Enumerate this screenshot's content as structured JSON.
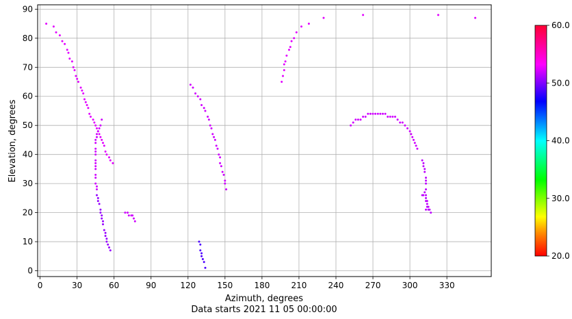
{
  "chart_data": {
    "type": "scatter",
    "title": "",
    "xlabel": "Azimuth, degrees",
    "ylabel": "Elevation, degrees",
    "caption": "Data starts 2021 11 05 00:00:00",
    "xlim": [
      -2,
      366
    ],
    "ylim": [
      -2,
      91.5
    ],
    "xticks": [
      0,
      30,
      60,
      90,
      120,
      150,
      180,
      210,
      240,
      270,
      300,
      330
    ],
    "yticks": [
      0,
      10,
      20,
      30,
      40,
      50,
      60,
      70,
      80,
      90
    ],
    "grid": true,
    "colorbar": {
      "min": 20,
      "max": 60,
      "ticks": [
        "20.0",
        "30.0",
        "40.0",
        "50.0",
        "60.0"
      ],
      "tick_values": [
        20,
        30,
        40,
        50,
        60
      ],
      "colormap": "hsv"
    },
    "series": [
      {
        "value": 53.5,
        "points": [
          [
            5,
            85
          ],
          [
            11,
            84
          ],
          [
            13,
            82
          ],
          [
            16,
            81
          ],
          [
            18,
            79
          ],
          [
            20,
            78
          ],
          [
            22,
            76
          ],
          [
            23,
            75
          ],
          [
            24,
            73
          ],
          [
            26,
            72
          ],
          [
            27,
            70
          ],
          [
            28,
            69
          ],
          [
            29,
            67
          ],
          [
            30,
            66
          ],
          [
            31,
            65
          ],
          [
            33,
            63
          ],
          [
            34,
            62
          ],
          [
            35,
            61
          ],
          [
            36,
            59
          ],
          [
            37,
            58
          ],
          [
            38,
            57
          ],
          [
            39,
            56
          ],
          [
            40,
            54
          ],
          [
            41,
            53
          ],
          [
            43,
            52
          ],
          [
            44,
            51
          ],
          [
            45,
            50
          ],
          [
            46,
            49
          ],
          [
            47,
            48
          ],
          [
            48,
            47
          ],
          [
            49,
            46
          ],
          [
            50,
            45
          ],
          [
            51,
            44
          ],
          [
            52,
            43
          ],
          [
            53,
            41
          ],
          [
            54,
            40
          ],
          [
            56,
            39
          ],
          [
            57,
            38
          ],
          [
            59,
            37
          ]
        ]
      },
      {
        "value": 53.0,
        "points": [
          [
            50,
            52
          ],
          [
            49,
            50
          ],
          [
            48,
            49
          ],
          [
            47,
            48
          ],
          [
            46,
            47
          ],
          [
            46,
            46
          ],
          [
            45,
            45
          ],
          [
            45,
            44
          ],
          [
            45,
            42
          ],
          [
            45,
            41
          ],
          [
            45,
            40
          ],
          [
            45,
            38
          ],
          [
            45,
            37
          ],
          [
            45,
            36
          ],
          [
            45,
            35
          ],
          [
            45,
            33
          ],
          [
            45,
            32
          ],
          [
            45,
            30
          ],
          [
            46,
            29
          ],
          [
            46,
            28
          ]
        ]
      },
      {
        "value": 51.5,
        "points": [
          [
            46,
            26
          ],
          [
            47,
            25
          ],
          [
            47,
            24
          ],
          [
            48,
            23
          ],
          [
            49,
            21
          ],
          [
            49,
            20
          ],
          [
            50,
            19
          ],
          [
            50,
            18
          ],
          [
            51,
            17
          ],
          [
            51,
            16
          ],
          [
            52,
            14
          ],
          [
            53,
            13
          ],
          [
            53,
            12
          ],
          [
            54,
            11
          ],
          [
            54,
            10
          ],
          [
            55,
            9
          ],
          [
            56,
            8
          ],
          [
            57,
            7
          ]
        ]
      },
      {
        "value": 53.0,
        "points": [
          [
            69,
            20
          ],
          [
            71,
            20
          ],
          [
            72,
            19
          ],
          [
            74,
            19
          ],
          [
            75,
            19
          ],
          [
            76,
            18
          ],
          [
            77,
            17
          ]
        ]
      },
      {
        "value": 53.0,
        "points": [
          [
            122,
            64
          ],
          [
            124,
            63
          ],
          [
            126,
            61
          ],
          [
            128,
            60
          ],
          [
            130,
            59
          ],
          [
            131,
            57
          ],
          [
            133,
            56
          ],
          [
            134,
            55
          ],
          [
            136,
            53
          ],
          [
            137,
            52
          ],
          [
            138,
            50
          ],
          [
            139,
            49
          ],
          [
            140,
            47
          ],
          [
            141,
            46
          ],
          [
            142,
            45
          ],
          [
            143,
            43
          ],
          [
            144,
            42
          ],
          [
            145,
            40
          ],
          [
            146,
            39
          ],
          [
            146,
            37
          ],
          [
            147,
            36
          ],
          [
            148,
            34
          ],
          [
            149,
            33
          ],
          [
            150,
            31
          ],
          [
            150,
            30
          ],
          [
            151,
            28
          ]
        ]
      },
      {
        "value": 49.5,
        "points": [
          [
            129,
            10
          ],
          [
            130,
            9
          ],
          [
            130,
            7
          ],
          [
            131,
            6
          ],
          [
            131,
            5
          ],
          [
            132,
            4
          ],
          [
            133,
            3
          ],
          [
            134,
            1
          ]
        ]
      },
      {
        "value": 53.5,
        "points": [
          [
            196,
            65
          ],
          [
            197,
            67
          ],
          [
            198,
            69
          ],
          [
            198,
            71
          ],
          [
            199,
            72
          ],
          [
            200,
            74
          ],
          [
            202,
            76
          ],
          [
            203,
            77
          ],
          [
            204,
            79
          ],
          [
            206,
            80
          ],
          [
            208,
            82
          ],
          [
            212,
            84
          ],
          [
            218,
            85
          ],
          [
            230,
            87
          ],
          [
            262,
            88
          ],
          [
            323,
            88
          ],
          [
            353,
            87
          ]
        ]
      },
      {
        "value": 53.0,
        "points": [
          [
            252,
            50
          ],
          [
            254,
            51
          ],
          [
            256,
            52
          ],
          [
            258,
            52
          ],
          [
            260,
            52
          ],
          [
            262,
            53
          ],
          [
            264,
            53
          ],
          [
            266,
            54
          ],
          [
            268,
            54
          ],
          [
            270,
            54
          ],
          [
            272,
            54
          ],
          [
            274,
            54
          ],
          [
            276,
            54
          ],
          [
            278,
            54
          ],
          [
            280,
            54
          ],
          [
            282,
            53
          ],
          [
            284,
            53
          ],
          [
            286,
            53
          ],
          [
            288,
            53
          ],
          [
            290,
            52
          ],
          [
            292,
            51
          ],
          [
            294,
            51
          ],
          [
            296,
            50
          ],
          [
            298,
            49
          ],
          [
            300,
            48
          ],
          [
            301,
            47
          ],
          [
            302,
            46
          ],
          [
            303,
            45
          ],
          [
            304,
            44
          ],
          [
            305,
            43
          ],
          [
            306,
            42
          ]
        ]
      },
      {
        "value": 52.5,
        "points": [
          [
            310,
            38
          ],
          [
            311,
            37
          ],
          [
            311,
            36
          ],
          [
            312,
            35
          ],
          [
            312,
            34
          ],
          [
            313,
            32
          ],
          [
            313,
            31
          ],
          [
            313,
            30
          ],
          [
            313,
            28
          ],
          [
            312,
            27
          ],
          [
            313,
            26
          ],
          [
            311,
            26
          ],
          [
            310,
            26
          ],
          [
            313,
            25
          ],
          [
            313,
            24
          ],
          [
            314,
            24
          ],
          [
            314,
            23
          ],
          [
            315,
            22
          ],
          [
            314,
            22
          ],
          [
            315,
            21
          ],
          [
            313,
            21
          ],
          [
            316,
            21
          ],
          [
            317,
            20
          ]
        ]
      }
    ]
  }
}
